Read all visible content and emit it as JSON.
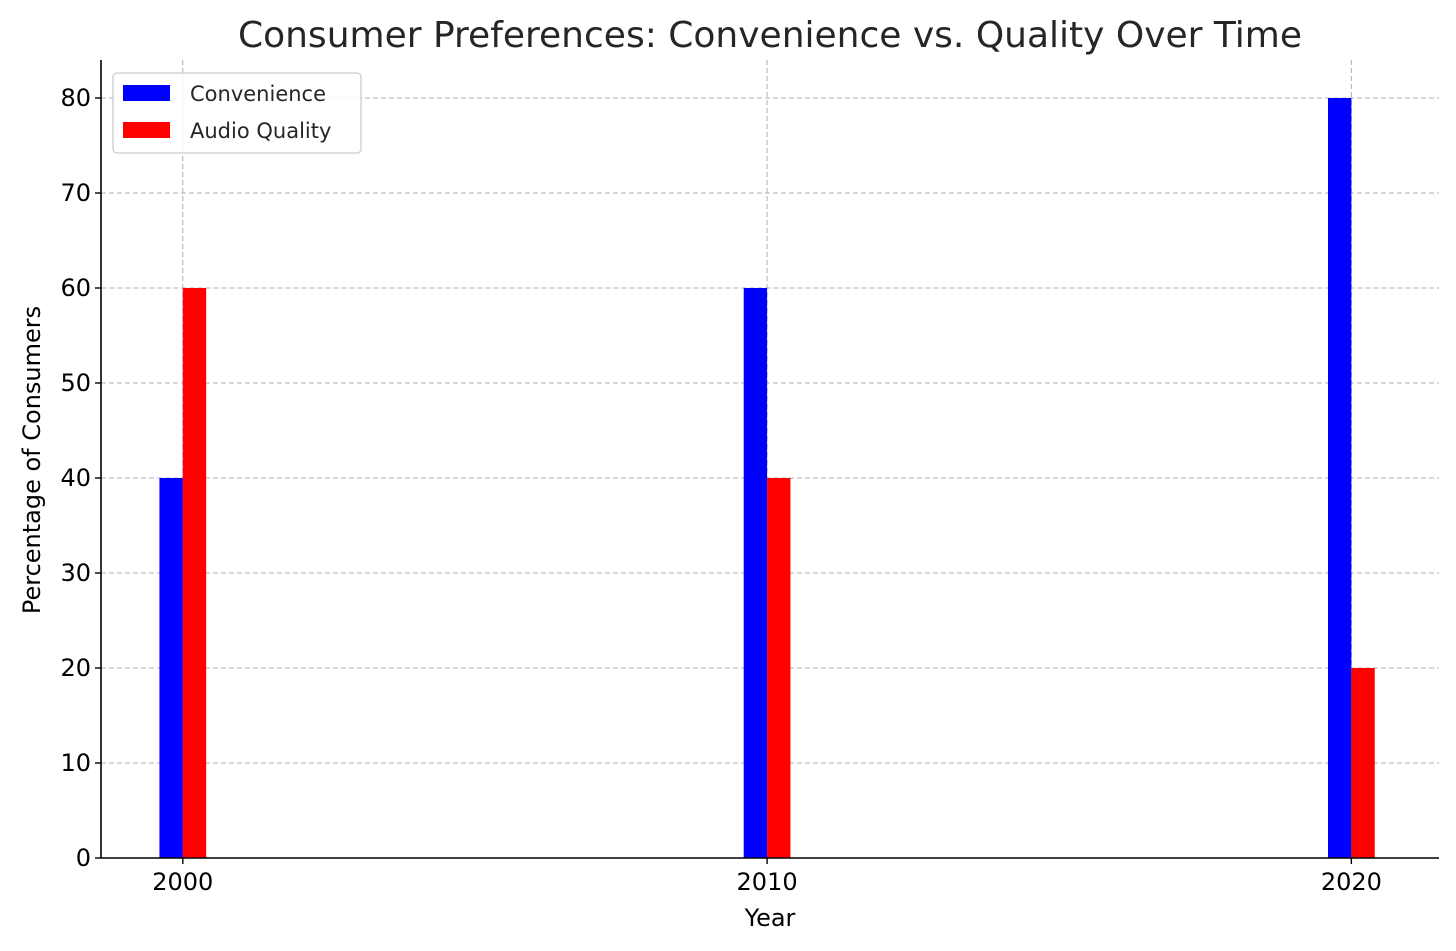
{
  "chart_data": {
    "type": "bar",
    "title": "Consumer Preferences: Convenience vs. Quality Over Time",
    "xlabel": "Year",
    "ylabel": "Percentage of Consumers",
    "categories": [
      "2000",
      "2010",
      "2020"
    ],
    "x": [
      2000,
      2010,
      2020
    ],
    "xlim": [
      1998.6,
      2021.5
    ],
    "ylim": [
      0,
      84
    ],
    "yticks": [
      0,
      10,
      20,
      30,
      40,
      50,
      60,
      70,
      80
    ],
    "grid": true,
    "legend_position": "top-left",
    "series": [
      {
        "name": "Convenience",
        "color": "#0000ff",
        "values": [
          40,
          60,
          80
        ]
      },
      {
        "name": "Audio Quality",
        "color": "#ff0000",
        "values": [
          60,
          40,
          20
        ]
      }
    ]
  }
}
